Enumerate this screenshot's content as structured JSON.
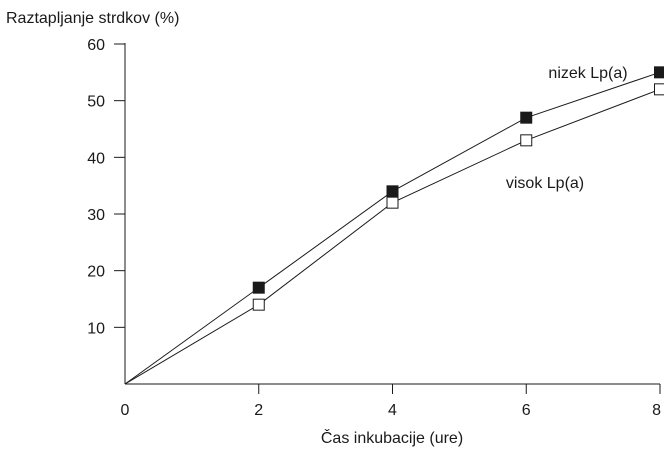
{
  "chart_data": {
    "type": "line",
    "ylabel": "Raztapljanje strdkov (%)",
    "xlabel": "Čas inkubacije (ure)",
    "xlim": [
      0,
      8
    ],
    "ylim": [
      0,
      60
    ],
    "x_ticks": [
      "0",
      "2",
      "4",
      "6",
      "8"
    ],
    "y_ticks": [
      "10",
      "20",
      "30",
      "40",
      "50",
      "60"
    ],
    "grid": false,
    "x": [
      0,
      2,
      4,
      6,
      8
    ],
    "series": [
      {
        "name": "nizek Lp(a)",
        "marker": "filled-square",
        "values": [
          0,
          17,
          34,
          47,
          55
        ]
      },
      {
        "name": "visok Lp(a)",
        "marker": "open-square",
        "values": [
          0,
          14,
          32,
          43,
          52
        ]
      }
    ],
    "colors": {
      "line": "#1a1a1a",
      "marker_fill": "#1a1a1a",
      "background": "#ffffff"
    }
  }
}
